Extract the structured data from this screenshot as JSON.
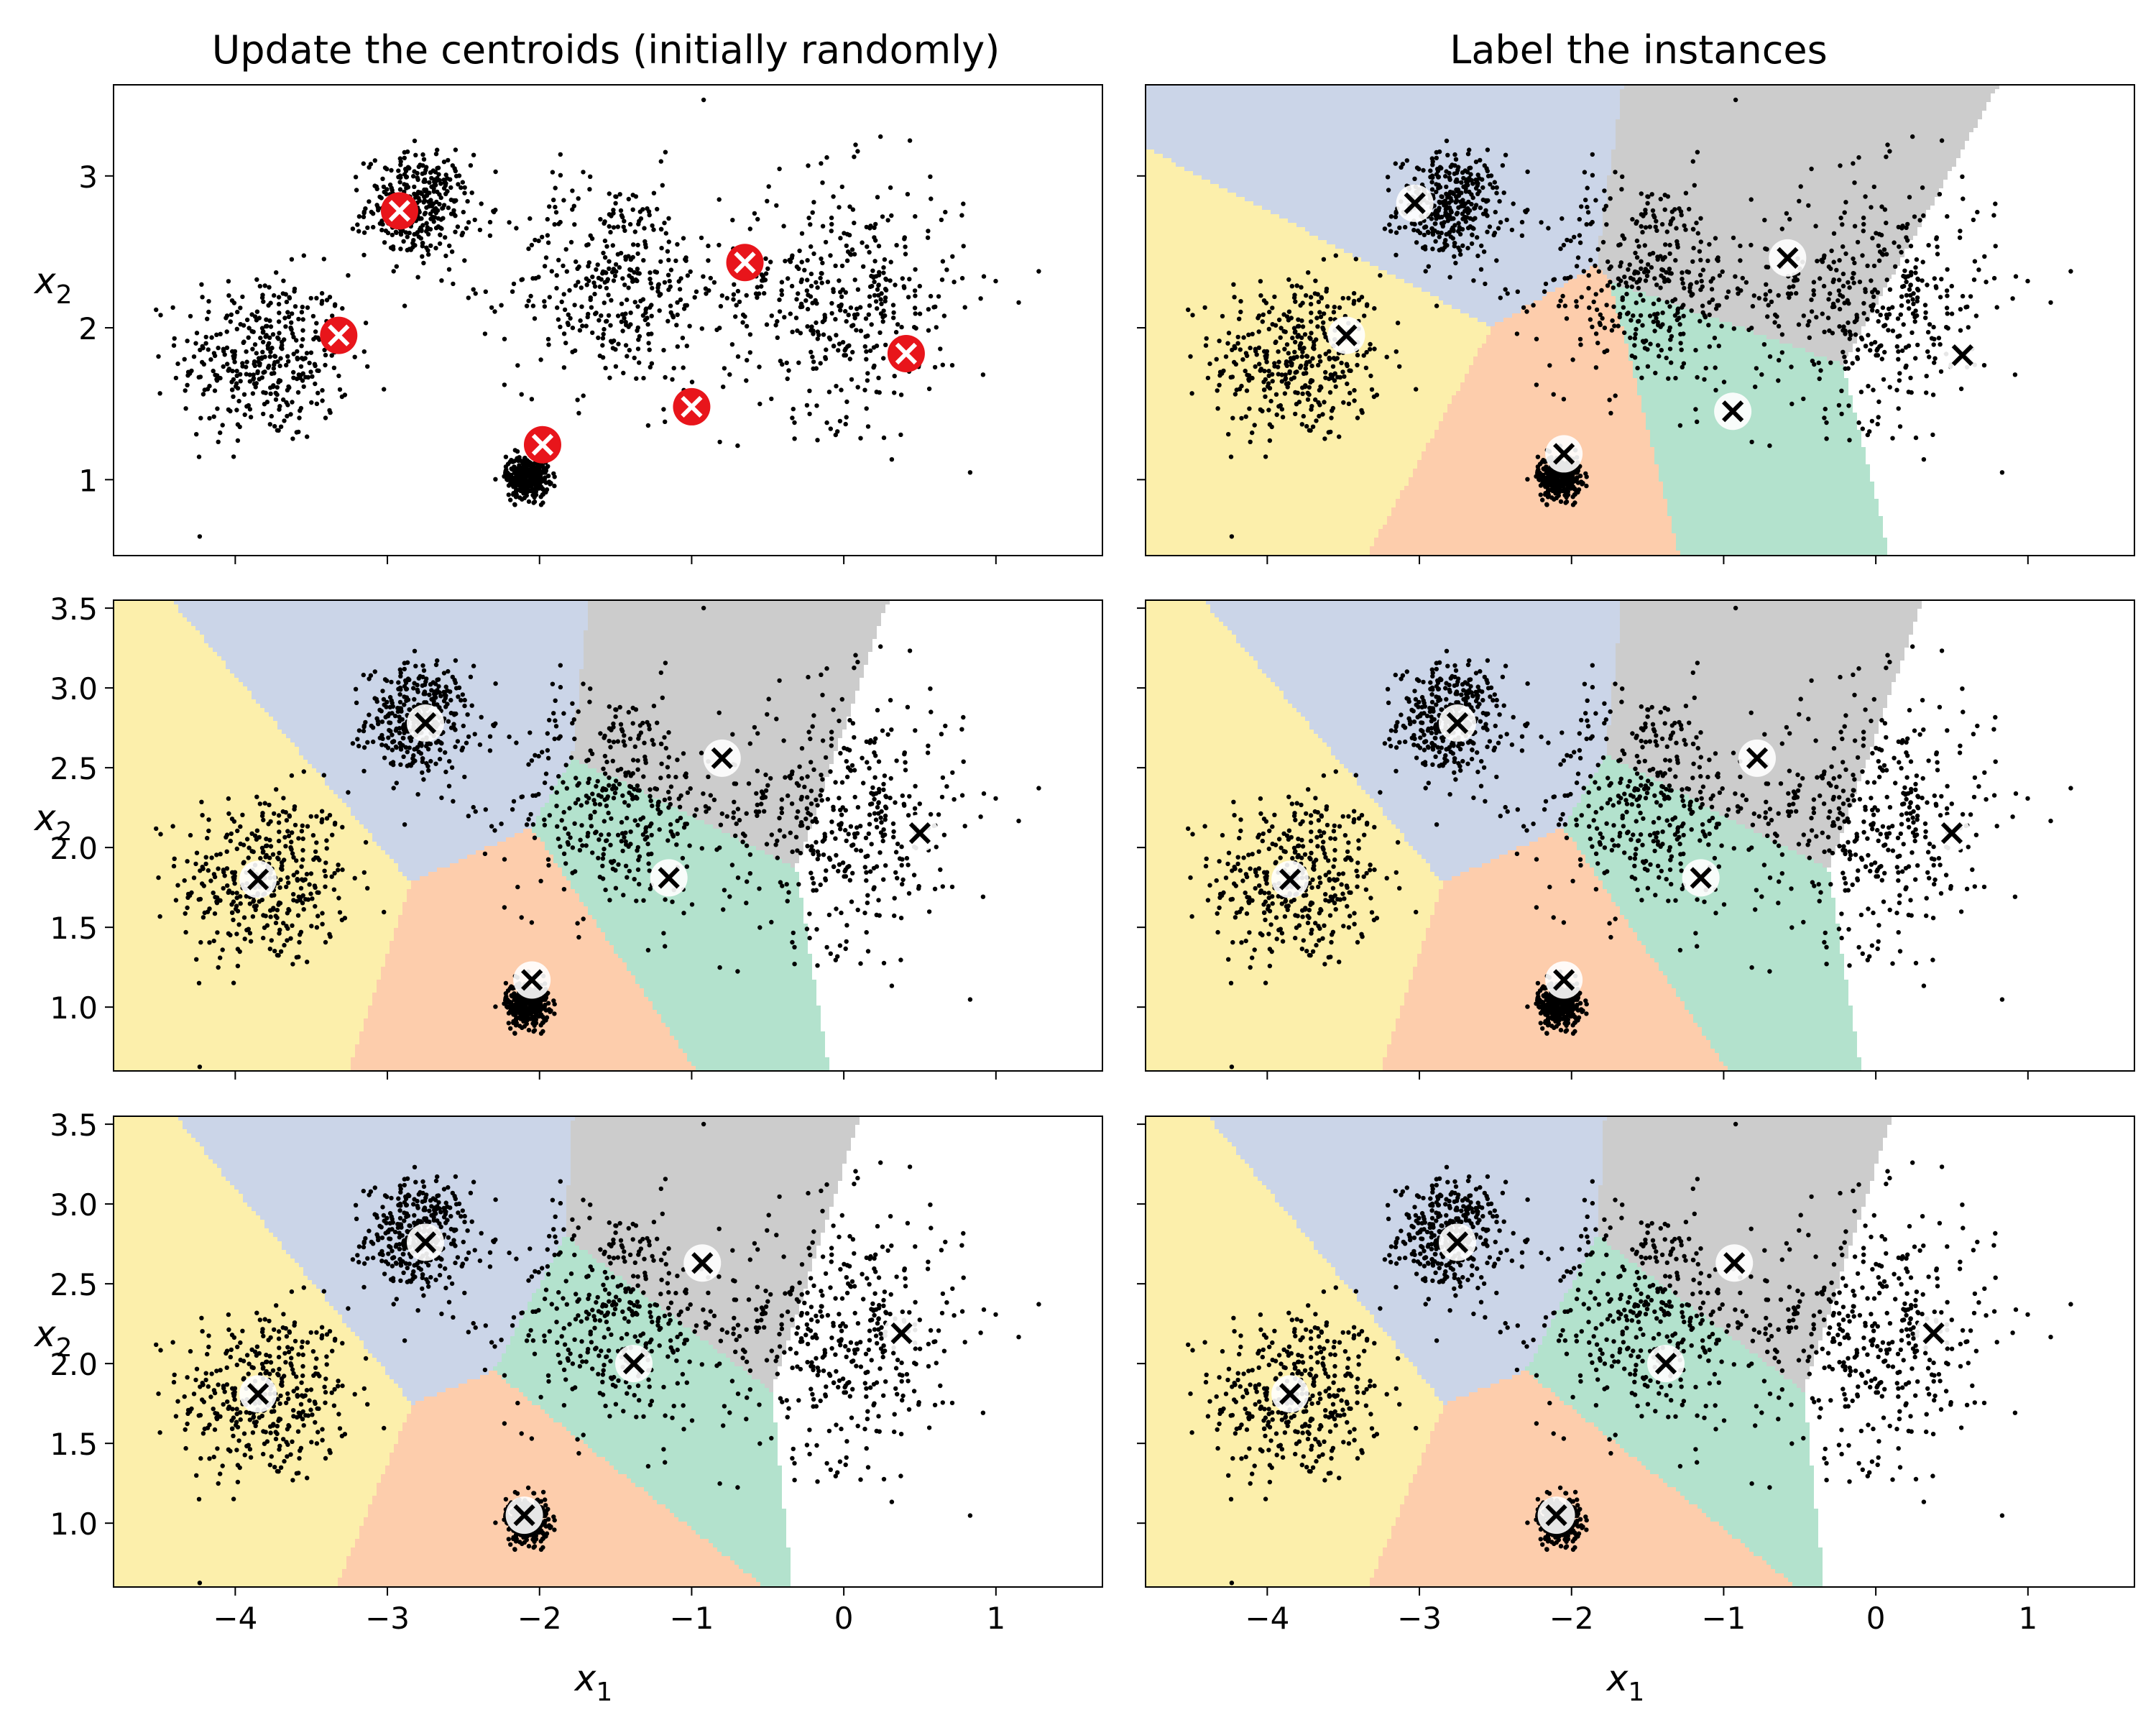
{
  "figure": {
    "col_titles": [
      "Update the centroids (initially randomly)",
      "Label the instances"
    ],
    "xlabel_main": "x",
    "xlabel_sub": "1",
    "ylabel_main": "x",
    "ylabel_sub": "2"
  },
  "colors": {
    "regions": [
      "#fcefab",
      "#cbd5e8",
      "#fdcdac",
      "#b3e2cd",
      "#cccccc",
      "#e6f5c9"
    ],
    "random_centroid": "#e8151b",
    "points": "#000000"
  },
  "data_clusters": [
    {
      "cx": -3.8,
      "cy": 1.8,
      "s": 0.28,
      "n": 380
    },
    {
      "cx": -2.8,
      "cy": 2.8,
      "s": 0.17,
      "n": 360
    },
    {
      "cx": -1.5,
      "cy": 2.3,
      "s": 0.35,
      "n": 380
    },
    {
      "cx": 0.0,
      "cy": 2.2,
      "s": 0.4,
      "n": 420
    },
    {
      "cx": -2.08,
      "cy": 1.02,
      "s": 0.07,
      "n": 360
    }
  ],
  "chart_data": [
    {
      "type": "scatter",
      "panel": "row1-left",
      "xlim": [
        -4.8,
        1.7
      ],
      "ylim": [
        0.5,
        3.6
      ],
      "yticks": [
        1,
        2,
        3
      ],
      "ytick_labels": [
        "1",
        "2",
        "3"
      ],
      "show_xticklabels": false,
      "show_yticklabels": true,
      "regions": false,
      "centroids": [
        [
          -3.32,
          1.95
        ],
        [
          -2.92,
          2.77
        ],
        [
          -1.98,
          1.23
        ],
        [
          -1.0,
          1.48
        ],
        [
          -0.65,
          2.43
        ],
        [
          0.41,
          1.83
        ]
      ],
      "centroid_style": "random"
    },
    {
      "type": "scatter",
      "panel": "row1-right",
      "xlim": [
        -4.8,
        1.7
      ],
      "ylim": [
        0.5,
        3.6
      ],
      "yticks": [
        1,
        2,
        3
      ],
      "ytick_labels": [],
      "show_xticklabels": false,
      "show_yticklabels": false,
      "regions": true,
      "centroids": [
        [
          -3.48,
          1.95
        ],
        [
          -3.03,
          2.82
        ],
        [
          -2.05,
          1.17
        ],
        [
          -0.94,
          1.45
        ],
        [
          -0.58,
          2.46
        ],
        [
          0.57,
          1.82
        ]
      ],
      "centroid_style": "fitted"
    },
    {
      "type": "scatter",
      "panel": "row2-left",
      "xlim": [
        -4.8,
        1.7
      ],
      "ylim": [
        0.6,
        3.55
      ],
      "yticks": [
        1.0,
        1.5,
        2.0,
        2.5,
        3.0,
        3.5
      ],
      "ytick_labels": [
        "1.0",
        "1.5",
        "2.0",
        "2.5",
        "3.0",
        "3.5"
      ],
      "show_xticklabels": false,
      "show_yticklabels": true,
      "regions": true,
      "centroids": [
        [
          -3.85,
          1.8
        ],
        [
          -2.75,
          2.78
        ],
        [
          -2.05,
          1.17
        ],
        [
          -1.15,
          1.81
        ],
        [
          -0.8,
          2.56
        ],
        [
          0.5,
          2.09
        ]
      ],
      "centroid_style": "fitted"
    },
    {
      "type": "scatter",
      "panel": "row2-right",
      "xlim": [
        -4.8,
        1.7
      ],
      "ylim": [
        0.6,
        3.55
      ],
      "yticks": [
        1.0,
        1.5,
        2.0,
        2.5,
        3.0,
        3.5
      ],
      "ytick_labels": [],
      "show_xticklabels": false,
      "show_yticklabels": false,
      "regions": true,
      "centroids": [
        [
          -3.85,
          1.8
        ],
        [
          -2.75,
          2.78
        ],
        [
          -2.05,
          1.17
        ],
        [
          -1.15,
          1.81
        ],
        [
          -0.78,
          2.56
        ],
        [
          0.5,
          2.09
        ]
      ],
      "centroid_style": "fitted"
    },
    {
      "type": "scatter",
      "panel": "row3-left",
      "xlim": [
        -4.8,
        1.7
      ],
      "ylim": [
        0.6,
        3.55
      ],
      "yticks": [
        1.0,
        1.5,
        2.0,
        2.5,
        3.0,
        3.5
      ],
      "ytick_labels": [
        "1.0",
        "1.5",
        "2.0",
        "2.5",
        "3.0",
        "3.5"
      ],
      "show_xticklabels": true,
      "show_yticklabels": true,
      "regions": true,
      "xticks": [
        -4,
        -3,
        -2,
        -1,
        0,
        1
      ],
      "xtick_labels": [
        "−4",
        "−3",
        "−2",
        "−1",
        "0",
        "1"
      ],
      "centroids": [
        [
          -3.85,
          1.81
        ],
        [
          -2.75,
          2.76
        ],
        [
          -2.1,
          1.05
        ],
        [
          -1.38,
          2.0
        ],
        [
          -0.93,
          2.63
        ],
        [
          0.38,
          2.19
        ]
      ],
      "centroid_style": "fitted"
    },
    {
      "type": "scatter",
      "panel": "row3-right",
      "xlim": [
        -4.8,
        1.7
      ],
      "ylim": [
        0.6,
        3.55
      ],
      "yticks": [
        1.0,
        1.5,
        2.0,
        2.5,
        3.0,
        3.5
      ],
      "ytick_labels": [],
      "show_xticklabels": true,
      "show_yticklabels": false,
      "regions": true,
      "xticks": [
        -4,
        -3,
        -2,
        -1,
        0,
        1
      ],
      "xtick_labels": [
        "−4",
        "−3",
        "−2",
        "−1",
        "0",
        "1"
      ],
      "centroids": [
        [
          -3.85,
          1.81
        ],
        [
          -2.75,
          2.76
        ],
        [
          -2.1,
          1.05
        ],
        [
          -1.38,
          2.0
        ],
        [
          -0.93,
          2.63
        ],
        [
          0.38,
          2.19
        ]
      ],
      "centroid_style": "fitted"
    }
  ]
}
